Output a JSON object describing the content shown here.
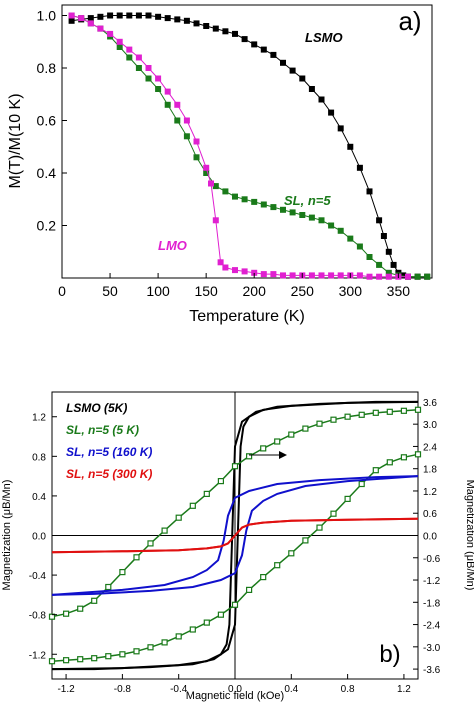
{
  "chart_data": [
    {
      "panel_label": "a)",
      "type": "line",
      "xlabel": "Temperature (K)",
      "ylabel": "M(T)/M(10 K)",
      "xlim": [
        0,
        385
      ],
      "ylim": [
        0,
        1.04
      ],
      "xticks": [
        0,
        50,
        100,
        150,
        200,
        250,
        300,
        350
      ],
      "yticks": [
        0.2,
        0.4,
        0.6,
        0.8,
        1.0
      ],
      "ytick_labels": [
        "0.2",
        "0.4",
        "0.6",
        "0.8",
        "1.0"
      ],
      "series": [
        {
          "name": "LSMO",
          "color": "#000000",
          "x": [
            10,
            20,
            30,
            40,
            50,
            60,
            70,
            80,
            90,
            100,
            110,
            120,
            130,
            140,
            150,
            160,
            170,
            180,
            190,
            200,
            210,
            220,
            230,
            240,
            250,
            260,
            270,
            280,
            290,
            300,
            310,
            320,
            330,
            335,
            340,
            345,
            350,
            355,
            360,
            370,
            380
          ],
          "y": [
            0.98,
            0.985,
            0.99,
            0.995,
            1.0,
            1.0,
            1.0,
            1.0,
            1.0,
            0.995,
            0.99,
            0.985,
            0.98,
            0.97,
            0.96,
            0.95,
            0.94,
            0.93,
            0.91,
            0.89,
            0.87,
            0.85,
            0.82,
            0.79,
            0.76,
            0.72,
            0.68,
            0.63,
            0.57,
            0.5,
            0.42,
            0.33,
            0.22,
            0.16,
            0.1,
            0.05,
            0.02,
            0.01,
            0.005,
            0.005,
            0.005
          ]
        },
        {
          "name": "SL, n=5",
          "color": "#1a7a1a",
          "x": [
            10,
            20,
            30,
            40,
            50,
            60,
            70,
            80,
            90,
            100,
            110,
            120,
            130,
            140,
            150,
            160,
            170,
            180,
            190,
            200,
            210,
            220,
            230,
            240,
            250,
            260,
            270,
            280,
            290,
            300,
            310,
            320,
            330,
            340,
            350,
            360,
            370,
            380
          ],
          "y": [
            1.0,
            0.99,
            0.97,
            0.95,
            0.92,
            0.88,
            0.84,
            0.8,
            0.76,
            0.72,
            0.66,
            0.6,
            0.54,
            0.46,
            0.4,
            0.35,
            0.33,
            0.31,
            0.3,
            0.29,
            0.28,
            0.27,
            0.26,
            0.25,
            0.24,
            0.23,
            0.22,
            0.2,
            0.18,
            0.15,
            0.12,
            0.08,
            0.05,
            0.02,
            0.01,
            0.005,
            0.005,
            0.005
          ]
        },
        {
          "name": "LMO",
          "color": "#e020d0",
          "x": [
            10,
            20,
            30,
            40,
            50,
            60,
            70,
            80,
            90,
            100,
            110,
            120,
            130,
            140,
            150,
            155,
            160,
            165,
            170,
            180,
            190,
            200,
            210,
            220,
            230,
            240,
            250,
            260,
            270,
            280,
            290,
            300,
            310,
            320,
            330,
            340,
            350,
            360
          ],
          "y": [
            1.0,
            0.99,
            0.97,
            0.95,
            0.93,
            0.9,
            0.87,
            0.84,
            0.8,
            0.76,
            0.71,
            0.66,
            0.6,
            0.52,
            0.42,
            0.36,
            0.22,
            0.06,
            0.04,
            0.03,
            0.025,
            0.02,
            0.015,
            0.015,
            0.01,
            0.01,
            0.01,
            0.01,
            0.01,
            0.01,
            0.01,
            0.01,
            0.01,
            0.005,
            0.005,
            0.005,
            0.005,
            0.005
          ]
        }
      ],
      "annotations": [
        "LSMO",
        "SL, n=5",
        "LMO"
      ]
    },
    {
      "panel_label": "b)",
      "type": "line",
      "xlabel": "Magnetic field (kOe)",
      "ylabel": "Magnetization (μB/Mn)",
      "y2label": "Magnetization (μB/Mn)",
      "xlim": [
        -1.3,
        1.3
      ],
      "ylim": [
        -1.45,
        1.45
      ],
      "y2lim": [
        -3.867,
        3.867
      ],
      "xticks": [
        -1.2,
        -0.8,
        -0.4,
        0.0,
        0.4,
        0.8,
        1.2
      ],
      "xtick_labels": [
        "-1.2",
        "-0.8",
        "-0.4",
        "0.0",
        "0.4",
        "0.8",
        "1.2"
      ],
      "yticks": [
        -1.2,
        -0.8,
        -0.4,
        0.0,
        0.4,
        0.8,
        1.2
      ],
      "ytick_labels": [
        "-1.2",
        "-0.8",
        "-0.4",
        "0.0",
        "0.4",
        "0.8",
        "1.2"
      ],
      "y2ticks": [
        -3.6,
        -3.0,
        -2.4,
        -1.8,
        -1.2,
        -0.6,
        0.0,
        0.6,
        1.2,
        1.8,
        2.4,
        3.0,
        3.6
      ],
      "y2tick_labels": [
        "-3.6",
        "-3.0",
        "-2.4",
        "-1.8",
        "-1.2",
        "-0.6",
        "0.0",
        "0.6",
        "1.2",
        "1.8",
        "2.4",
        "3.0",
        "3.6"
      ],
      "legend_position": "upper-left",
      "legend": [
        {
          "name": "LSMO (5K)",
          "color": "#000000"
        },
        {
          "name": "SL, n=5 (5 K)",
          "color": "#1a7a1a"
        },
        {
          "name": "SL, n=5 (160 K)",
          "color": "#1010cc"
        },
        {
          "name": "SL, n=5 (300 K)",
          "color": "#e01010"
        }
      ],
      "series": [
        {
          "name": "LSMO (5K)",
          "color": "#000000",
          "up_x": [
            -1.3,
            -1.0,
            -0.6,
            -0.3,
            -0.15,
            -0.05,
            0.0,
            0.02,
            0.04,
            0.06,
            0.1,
            0.2,
            0.4,
            0.8,
            1.3
          ],
          "up_y": [
            -1.35,
            -1.35,
            -1.33,
            -1.3,
            -1.25,
            -1.15,
            -0.9,
            0.0,
            0.9,
            1.1,
            1.2,
            1.27,
            1.31,
            1.34,
            1.35
          ],
          "down_x": [
            1.3,
            1.0,
            0.6,
            0.3,
            0.15,
            0.05,
            0.0,
            -0.02,
            -0.04,
            -0.06,
            -0.1,
            -0.2,
            -0.4,
            -0.8,
            -1.3
          ],
          "down_y": [
            1.35,
            1.35,
            1.33,
            1.3,
            1.25,
            1.15,
            0.9,
            0.0,
            -0.9,
            -1.1,
            -1.2,
            -1.27,
            -1.31,
            -1.34,
            -1.35
          ]
        },
        {
          "name": "SL, n=5 (5 K)",
          "color": "#1a7a1a",
          "down_x": [
            1.3,
            1.2,
            1.1,
            1.0,
            0.9,
            0.8,
            0.7,
            0.6,
            0.5,
            0.4,
            0.3,
            0.2,
            0.1,
            0.0,
            -0.1,
            -0.2,
            -0.3,
            -0.4,
            -0.5,
            -0.6,
            -0.7,
            -0.8,
            -0.9,
            -1.0,
            -1.1,
            -1.2,
            -1.3
          ],
          "down_y": [
            1.27,
            1.26,
            1.25,
            1.24,
            1.22,
            1.2,
            1.17,
            1.13,
            1.08,
            1.02,
            0.95,
            0.88,
            0.8,
            0.7,
            0.55,
            0.42,
            0.3,
            0.18,
            0.05,
            -0.08,
            -0.22,
            -0.37,
            -0.52,
            -0.66,
            -0.74,
            -0.79,
            -0.82
          ],
          "up_x": [
            -1.3,
            -1.2,
            -1.1,
            -1.0,
            -0.9,
            -0.8,
            -0.7,
            -0.6,
            -0.5,
            -0.4,
            -0.3,
            -0.2,
            -0.1,
            0.0,
            0.1,
            0.2,
            0.3,
            0.4,
            0.5,
            0.6,
            0.7,
            0.8,
            0.9,
            1.0,
            1.1,
            1.2,
            1.3
          ],
          "up_y": [
            -1.27,
            -1.26,
            -1.25,
            -1.24,
            -1.22,
            -1.2,
            -1.17,
            -1.13,
            -1.08,
            -1.02,
            -0.95,
            -0.88,
            -0.8,
            -0.7,
            -0.55,
            -0.42,
            -0.3,
            -0.18,
            -0.05,
            0.08,
            0.22,
            0.37,
            0.52,
            0.66,
            0.74,
            0.79,
            0.82
          ]
        },
        {
          "name": "SL, n=5 (160 K)",
          "color": "#1010cc",
          "up_x": [
            -1.3,
            -1.0,
            -0.6,
            -0.3,
            -0.1,
            0.0,
            0.05,
            0.08,
            0.12,
            0.2,
            0.3,
            0.5,
            0.8,
            1.3
          ],
          "up_y": [
            -0.6,
            -0.59,
            -0.56,
            -0.52,
            -0.45,
            -0.38,
            -0.2,
            0.05,
            0.25,
            0.35,
            0.42,
            0.5,
            0.55,
            0.6
          ],
          "down_x": [
            1.3,
            1.0,
            0.6,
            0.3,
            0.1,
            0.0,
            -0.05,
            -0.08,
            -0.12,
            -0.2,
            -0.3,
            -0.5,
            -0.8,
            -1.3
          ],
          "down_y": [
            0.6,
            0.59,
            0.56,
            0.52,
            0.45,
            0.38,
            0.2,
            -0.05,
            -0.25,
            -0.35,
            -0.42,
            -0.5,
            -0.55,
            -0.6
          ]
        },
        {
          "name": "SL, n=5 (300 K)",
          "color": "#e01010",
          "up_x": [
            -1.3,
            -0.8,
            -0.4,
            -0.2,
            -0.1,
            -0.05,
            0.0,
            0.05,
            0.1,
            0.2,
            0.4,
            0.8,
            1.3
          ],
          "up_y": [
            -0.17,
            -0.16,
            -0.15,
            -0.13,
            -0.11,
            -0.08,
            0.0,
            0.08,
            0.11,
            0.13,
            0.15,
            0.16,
            0.17
          ],
          "down_x": [
            1.3,
            0.8,
            0.4,
            0.2,
            0.1,
            0.05,
            0.0,
            -0.05,
            -0.1,
            -0.2,
            -0.4,
            -0.8,
            -1.3
          ],
          "down_y": [
            0.17,
            0.16,
            0.15,
            0.13,
            0.11,
            0.08,
            0.0,
            -0.08,
            -0.11,
            -0.13,
            -0.15,
            -0.16,
            -0.17
          ]
        }
      ]
    }
  ]
}
